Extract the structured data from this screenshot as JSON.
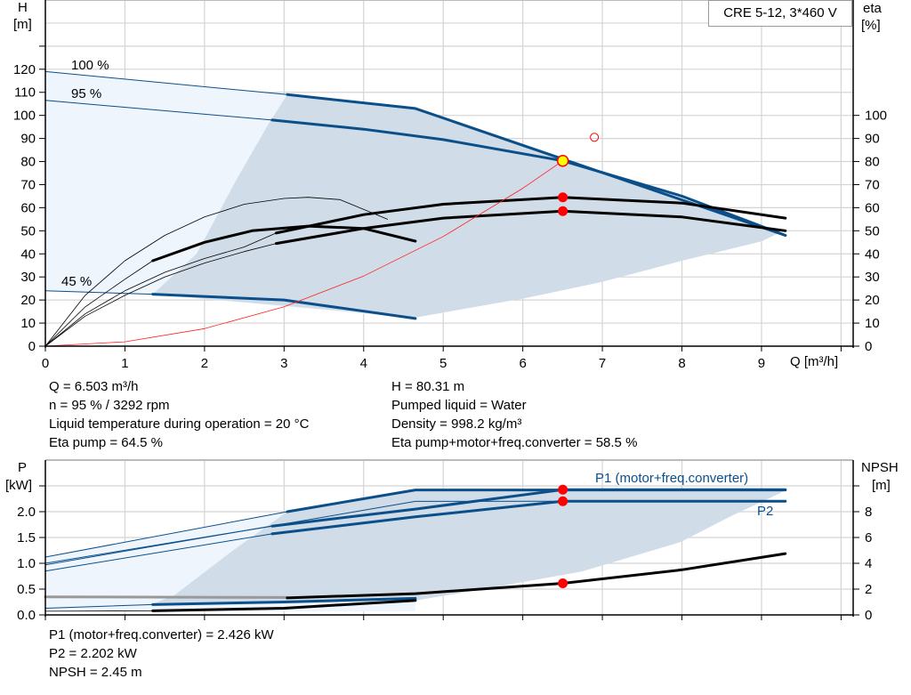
{
  "colors": {
    "grid": "#d4d4d4",
    "blue": "#0b4f8a",
    "light_fill": "#eef5fd",
    "gray_fill": "#d0dce7",
    "system": "#ff2020",
    "op_point": "#ffff00",
    "marker": "#ff0000"
  },
  "info_box": "CRE 5-12, 3*460 V",
  "chart_data": [
    {
      "type": "line",
      "xlabel": "Q [m³/h]",
      "ylabel_left": [
        "H",
        "[m]"
      ],
      "ylabel_right": [
        "eta",
        "[%]"
      ],
      "xlim": [
        0,
        10
      ],
      "ylim_left": [
        0,
        150
      ],
      "ylim_right": [
        0,
        150
      ],
      "x_ticks": [
        0,
        1,
        2,
        3,
        4,
        5,
        6,
        7,
        8,
        9
      ],
      "y_ticks_left": [
        0,
        10,
        20,
        30,
        40,
        50,
        60,
        70,
        80,
        90,
        100,
        110,
        120
      ],
      "y_ticks_right": [
        0,
        10,
        20,
        30,
        40,
        50,
        60,
        70,
        80,
        90,
        100
      ],
      "grid": true,
      "curve_labels": [
        "100 %",
        "95 %",
        "45 %"
      ],
      "regions": [
        {
          "fill": "light",
          "points": [
            [
              0,
              119
            ],
            [
              3.04,
              109
            ],
            [
              4.65,
              103
            ],
            [
              4.65,
              12
            ],
            [
              1.35,
              22.5
            ],
            [
              0,
              24
            ]
          ]
        },
        {
          "fill": "gray",
          "points": [
            [
              3.04,
              109
            ],
            [
              4.65,
              103
            ],
            [
              9.3,
              48
            ],
            [
              9.22,
              49
            ],
            [
              9.0,
              45.4
            ],
            [
              8,
              37
            ],
            [
              6.98,
              27.7
            ],
            [
              6.03,
              20.8
            ],
            [
              4.66,
              12.5
            ],
            [
              1.35,
              22.5
            ],
            [
              1.9,
              40
            ],
            [
              2.41,
              72.7
            ],
            [
              2.8,
              96
            ],
            [
              3.04,
              109
            ]
          ]
        }
      ],
      "series": [
        {
          "name": "100 %",
          "axis": "H",
          "style": "blue-thin",
          "points": [
            [
              0,
              119
            ],
            [
              3.04,
              109
            ]
          ]
        },
        {
          "axis": "H",
          "style": "blue-thick",
          "points": [
            [
              3.04,
              109
            ],
            [
              4.65,
              103
            ],
            [
              9.3,
              48
            ]
          ]
        },
        {
          "name": "95 %",
          "axis": "H",
          "style": "blue-thin",
          "points": [
            [
              0,
              106.5
            ],
            [
              2.85,
              98
            ]
          ]
        },
        {
          "axis": "H",
          "style": "blue-thick",
          "points": [
            [
              2.85,
              98
            ],
            [
              4,
              94
            ],
            [
              5,
              89.5
            ],
            [
              6.503,
              80.31
            ],
            [
              8,
              65
            ],
            [
              9.3,
              48
            ]
          ]
        },
        {
          "name": "45 %",
          "axis": "H",
          "style": "blue-thin",
          "points": [
            [
              0,
              24
            ],
            [
              1.35,
              22.5
            ]
          ]
        },
        {
          "axis": "H",
          "style": "blue-thick",
          "points": [
            [
              1.35,
              22.5
            ],
            [
              3,
              20
            ],
            [
              4.65,
              12
            ]
          ]
        },
        {
          "axis": "eta",
          "style": "black-thin",
          "points": [
            [
              0,
              0
            ],
            [
              0.5,
              22
            ],
            [
              1,
              37
            ],
            [
              1.5,
              48
            ],
            [
              2,
              56
            ],
            [
              2.5,
              61.5
            ],
            [
              3,
              64
            ],
            [
              3.3,
              64.5
            ],
            [
              3.7,
              63.5
            ],
            [
              4.3,
              55
            ]
          ]
        },
        {
          "axis": "eta",
          "style": "black-thin",
          "points": [
            [
              0,
              0
            ],
            [
              0.5,
              17
            ],
            [
              1,
              29
            ],
            [
              1.35,
              37
            ]
          ]
        },
        {
          "axis": "eta",
          "style": "black-thick",
          "points": [
            [
              1.35,
              37
            ],
            [
              2,
              45
            ],
            [
              2.6,
              50
            ],
            [
              3.3,
              52
            ],
            [
              4,
              51
            ],
            [
              4.65,
              45.5
            ]
          ]
        },
        {
          "axis": "eta",
          "style": "black-thin",
          "points": [
            [
              0,
              0
            ],
            [
              0.5,
              14
            ],
            [
              1,
              24
            ],
            [
              1.5,
              32
            ],
            [
              2,
              38
            ],
            [
              2.5,
              43
            ],
            [
              2.9,
              49
            ]
          ]
        },
        {
          "axis": "eta",
          "style": "black-thin",
          "points": [
            [
              0,
              0
            ],
            [
              0.5,
              13
            ],
            [
              1,
              22
            ],
            [
              1.5,
              30
            ],
            [
              2,
              36
            ],
            [
              2.5,
              41
            ],
            [
              2.9,
              44.5
            ]
          ]
        },
        {
          "axis": "eta",
          "style": "black-thick",
          "points": [
            [
              2.9,
              49
            ],
            [
              4,
              57
            ],
            [
              5,
              61.5
            ],
            [
              6.503,
              64.5
            ],
            [
              8,
              62
            ],
            [
              9.3,
              55.5
            ]
          ]
        },
        {
          "axis": "eta",
          "style": "black-thick",
          "points": [
            [
              2.9,
              44.5
            ],
            [
              4,
              51
            ],
            [
              5,
              55.5
            ],
            [
              6.503,
              58.5
            ],
            [
              8,
              56
            ],
            [
              9.3,
              50
            ]
          ]
        },
        {
          "axis": "H",
          "style": "system",
          "points": [
            [
              0,
              0
            ],
            [
              1,
              1.9
            ],
            [
              2,
              7.6
            ],
            [
              3,
              17.1
            ],
            [
              4,
              30.4
            ],
            [
              5,
              47.5
            ],
            [
              6,
              68.4
            ],
            [
              6.503,
              80.31
            ]
          ]
        }
      ],
      "markers": [
        {
          "kind": "operating-point",
          "x": 6.503,
          "y": 80.31
        },
        {
          "kind": "eta-pump",
          "x": 6.503,
          "y": 64.5
        },
        {
          "kind": "eta-total",
          "x": 6.503,
          "y": 58.5
        },
        {
          "kind": "open-circle",
          "x": 6.9,
          "y": 90.5
        }
      ]
    },
    {
      "type": "line",
      "ylabel_left": [
        "P",
        "[kW]"
      ],
      "ylabel_right": [
        "NPSH",
        "[m]"
      ],
      "xlim": [
        0,
        10
      ],
      "ylim_left": [
        0,
        3.0
      ],
      "ylim_right": [
        0,
        12
      ],
      "y_ticks_left": [
        "0.0",
        "0.5",
        "1.0",
        "1.5",
        "2.0",
        ""
      ],
      "y_ticks_right": [
        "0",
        "2",
        "4",
        "6",
        "8",
        ""
      ],
      "grid": true,
      "curve_labels": [
        "P1 (motor+freq.converter)",
        "P2"
      ],
      "regions": [
        {
          "fill": "light",
          "points": [
            [
              0,
              1.12
            ],
            [
              3.04,
              2.0
            ],
            [
              4.65,
              2.42
            ],
            [
              4.65,
              0.07
            ],
            [
              0,
              0.07
            ]
          ]
        },
        {
          "fill": "gray",
          "points": [
            [
              3.04,
              2.0
            ],
            [
              4.65,
              2.42
            ],
            [
              9.3,
              2.42
            ],
            [
              9.22,
              2.35
            ],
            [
              8.6,
              1.9
            ],
            [
              7.98,
              1.41
            ],
            [
              6.74,
              0.84
            ],
            [
              5.5,
              0.5
            ],
            [
              4.7,
              0.29
            ],
            [
              3,
              0.22
            ],
            [
              1.33,
              0.2
            ],
            [
              1.62,
              0.38
            ],
            [
              2.35,
              1.24
            ],
            [
              3.04,
              2.0
            ]
          ]
        }
      ],
      "series": [
        {
          "axis": "P",
          "style": "blue-thin",
          "points": [
            [
              0,
              1.12
            ],
            [
              3.04,
              2.0
            ]
          ]
        },
        {
          "axis": "P",
          "style": "blue-thick",
          "points": [
            [
              3.04,
              2.0
            ],
            [
              4.65,
              2.42
            ],
            [
              9.3,
              2.42
            ]
          ]
        },
        {
          "axis": "P",
          "style": "blue-thin",
          "points": [
            [
              0,
              0.97
            ],
            [
              4.65,
              2.2
            ],
            [
              6.503,
              2.202
            ]
          ]
        },
        {
          "name": "P1 (motor+freq.converter)",
          "axis": "P",
          "style": "blue-thin",
          "points": [
            [
              0,
              1.0
            ],
            [
              2.85,
              1.72
            ]
          ]
        },
        {
          "axis": "P",
          "style": "blue-thick",
          "points": [
            [
              2.85,
              1.72
            ],
            [
              4.65,
              2.05
            ],
            [
              6.503,
              2.426
            ],
            [
              9.3,
              2.426
            ]
          ]
        },
        {
          "name": "P2",
          "axis": "P",
          "style": "blue-thin",
          "points": [
            [
              0,
              0.85
            ],
            [
              2.85,
              1.57
            ]
          ]
        },
        {
          "axis": "P",
          "style": "blue-thick",
          "points": [
            [
              2.85,
              1.57
            ],
            [
              4.65,
              1.9
            ],
            [
              6.503,
              2.202
            ],
            [
              9.3,
              2.202
            ]
          ]
        },
        {
          "axis": "P",
          "style": "blue-thin",
          "points": [
            [
              0,
              0.13
            ],
            [
              1.35,
              0.2
            ]
          ]
        },
        {
          "axis": "P",
          "style": "blue-thick",
          "points": [
            [
              1.35,
              0.2
            ],
            [
              3,
              0.25
            ],
            [
              4.65,
              0.32
            ]
          ]
        },
        {
          "axis": "P",
          "style": "black-thin",
          "points": [
            [
              0,
              0.07
            ],
            [
              1.35,
              0.08
            ]
          ]
        },
        {
          "axis": "P",
          "style": "black-thick",
          "points": [
            [
              1.35,
              0.08
            ],
            [
              3,
              0.13
            ],
            [
              4.65,
              0.28
            ]
          ]
        },
        {
          "axis": "NPSH",
          "style": "gray-thick",
          "points": [
            [
              0,
              1.4
            ],
            [
              3.04,
              1.35
            ]
          ]
        },
        {
          "axis": "NPSH",
          "style": "black-thick",
          "points": [
            [
              3.04,
              1.32
            ],
            [
              4.65,
              1.65
            ],
            [
              6.503,
              2.45
            ],
            [
              8,
              3.5
            ],
            [
              9.3,
              4.75
            ]
          ]
        }
      ],
      "markers": [
        {
          "kind": "p1",
          "x": 6.503,
          "y": 2.426,
          "axis": "P"
        },
        {
          "kind": "p2",
          "x": 6.503,
          "y": 2.202,
          "axis": "P"
        },
        {
          "kind": "npsh",
          "x": 6.503,
          "y": 2.45,
          "axis": "NPSH"
        }
      ]
    }
  ],
  "readout_top": {
    "left": [
      "Q = 6.503 m³/h",
      "n = 95 % / 3292 rpm",
      "Liquid temperature during operation = 20 °C",
      "Eta pump = 64.5 %"
    ],
    "right": [
      "H = 80.31 m",
      "Pumped liquid = Water",
      "Density = 998.2 kg/m³",
      "Eta pump+motor+freq.converter = 58.5 %"
    ]
  },
  "readout_bottom": [
    "P1 (motor+freq.converter) = 2.426 kW",
    "P2 = 2.202 kW",
    "NPSH = 2.45 m"
  ]
}
